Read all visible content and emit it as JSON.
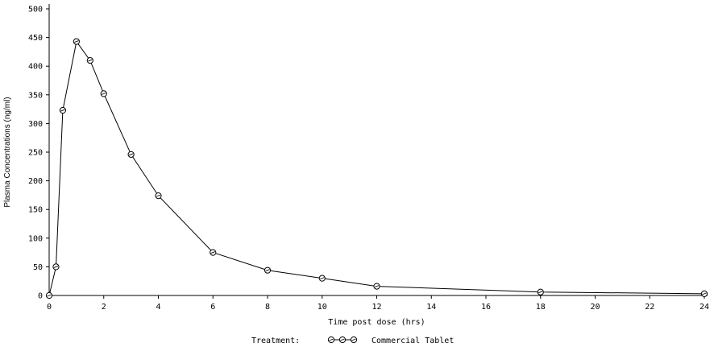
{
  "chart_data": {
    "type": "line",
    "title": "",
    "xlabel": "Time post dose (hrs)",
    "ylabel": "Plasma Concentrations (ng/ml)",
    "xlim": [
      0,
      24
    ],
    "ylim": [
      0,
      500
    ],
    "xticks": [
      0,
      2,
      4,
      6,
      8,
      10,
      12,
      14,
      16,
      18,
      20,
      22,
      24
    ],
    "yticks": [
      0,
      50,
      100,
      150,
      200,
      250,
      300,
      350,
      400,
      450,
      500
    ],
    "grid": false,
    "legend": {
      "placement": "bottom-center",
      "title": "Treatment:"
    },
    "series": [
      {
        "name": "Commercial Tablet",
        "color": "#000000",
        "marker": "circle-with-line",
        "x": [
          0,
          0.25,
          0.5,
          1,
          1.5,
          2,
          3,
          4,
          6,
          8,
          10,
          12,
          18,
          24
        ],
        "y": [
          0,
          50,
          323,
          443,
          410,
          352,
          246,
          174,
          75,
          44,
          30,
          16,
          6,
          3
        ]
      }
    ]
  }
}
